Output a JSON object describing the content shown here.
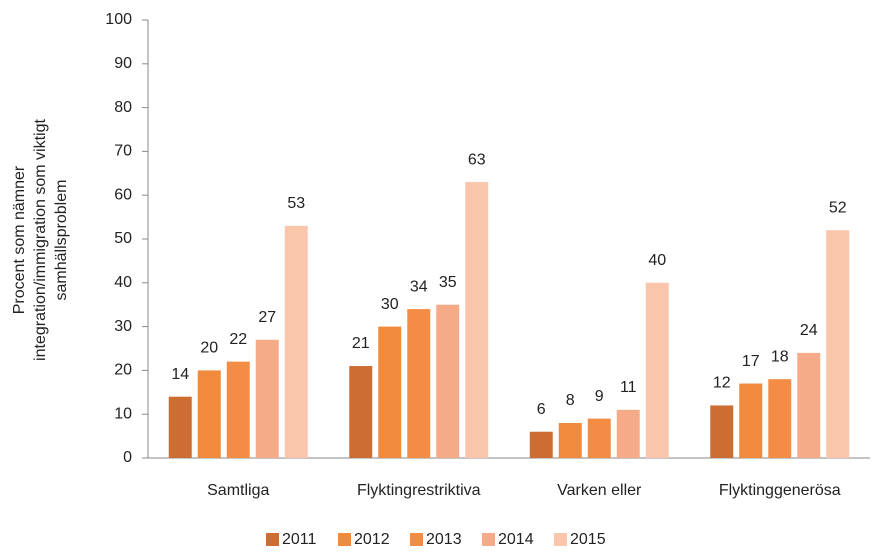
{
  "chart_data": {
    "type": "bar",
    "ylabel": [
      "Procent som nämner",
      "integration/immigration som viktigt",
      "samhällsproblem"
    ],
    "categories": [
      "Samtliga",
      "Flyktingrestriktiva",
      "Varken eller",
      "Flyktinggenerösa"
    ],
    "series": [
      {
        "name": "2011",
        "color": "#cc6e33",
        "values": [
          14,
          21,
          6,
          12
        ]
      },
      {
        "name": "2012",
        "color": "#f08a3c",
        "values": [
          20,
          30,
          8,
          17
        ]
      },
      {
        "name": "2013",
        "color": "#f38d45",
        "values": [
          22,
          34,
          9,
          18
        ]
      },
      {
        "name": "2014",
        "color": "#f6ab88",
        "values": [
          27,
          35,
          11,
          24
        ]
      },
      {
        "name": "2015",
        "color": "#f9c6ac",
        "values": [
          53,
          63,
          40,
          52
        ]
      }
    ],
    "ylim": [
      0,
      100
    ],
    "yticks": [
      0,
      10,
      20,
      30,
      40,
      50,
      60,
      70,
      80,
      90,
      100
    ],
    "grid": false
  }
}
